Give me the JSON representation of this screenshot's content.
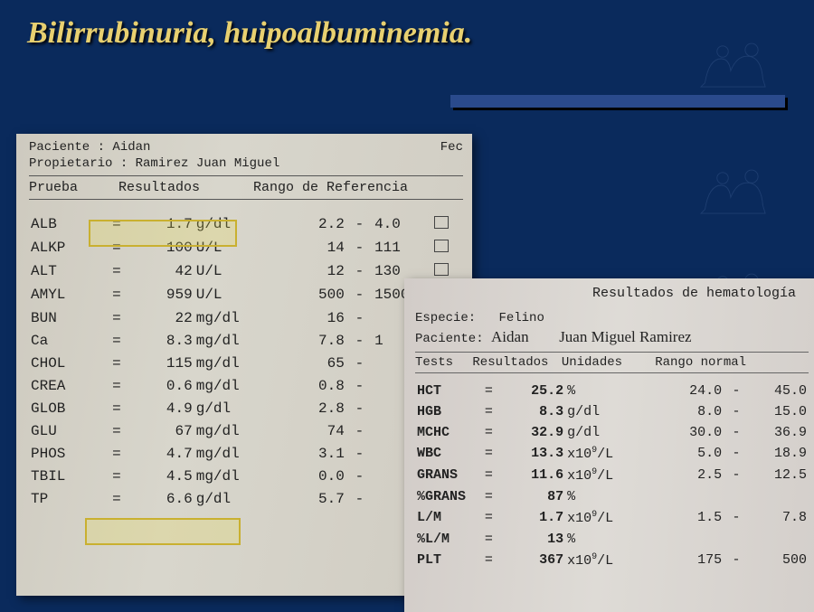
{
  "title": "Bilirrubinuria, huipoalbuminemia.",
  "panel1": {
    "patient_label": "Paciente :",
    "patient": "Aidan",
    "owner_label": "Propietario :",
    "owner": "Ramirez Juan Miguel",
    "date_label": "Fec",
    "col_test": "Prueba",
    "col_result": "Resultados",
    "col_range": "Rango de Referencia",
    "rows": [
      {
        "t": "ALB",
        "v": "1.7",
        "u": "g/dl",
        "lo": "2.2",
        "hi": "4.0",
        "box": true,
        "hl": true
      },
      {
        "t": "ALKP",
        "v": "100",
        "u": "U/L",
        "lo": "14",
        "hi": "111",
        "box": true
      },
      {
        "t": "ALT",
        "v": "42",
        "u": "U/L",
        "lo": "12",
        "hi": "130",
        "box": true
      },
      {
        "t": "AMYL",
        "v": "959",
        "u": "U/L",
        "lo": "500",
        "hi": "1500",
        "box": true
      },
      {
        "t": "BUN",
        "v": "22",
        "u": "mg/dl",
        "lo": "16",
        "hi": ""
      },
      {
        "t": "Ca",
        "v": "8.3",
        "u": "mg/dl",
        "lo": "7.8",
        "hi": "1"
      },
      {
        "t": "CHOL",
        "v": "115",
        "u": "mg/dl",
        "lo": "65",
        "hi": ""
      },
      {
        "t": "CREA",
        "v": "0.6",
        "u": "mg/dl",
        "lo": "0.8",
        "hi": ""
      },
      {
        "t": "GLOB",
        "v": "4.9",
        "u": "g/dl",
        "lo": "2.8",
        "hi": ""
      },
      {
        "t": "GLU",
        "v": "67",
        "u": "mg/dl",
        "lo": "74",
        "hi": ""
      },
      {
        "t": "PHOS",
        "v": "4.7",
        "u": "mg/dl",
        "lo": "3.1",
        "hi": ""
      },
      {
        "t": "TBIL",
        "v": "4.5",
        "u": "mg/dl",
        "lo": "0.0",
        "hi": "",
        "hl": true
      },
      {
        "t": "TP",
        "v": "6.6",
        "u": "g/dl",
        "lo": "5.7",
        "hi": ""
      }
    ]
  },
  "panel2": {
    "heading": "Resultados de hematología",
    "species_label": "Especie:",
    "species": "Felino",
    "patient_label": "Paciente:",
    "patient_hand": "Aidan",
    "owner_hand": "Juan Miguel Ramirez",
    "col_test": "Tests",
    "col_result": "Resultados",
    "col_unit": "Unidades",
    "col_range": "Rango normal",
    "rows": [
      {
        "t": "HCT",
        "v": "25.2",
        "u": "%",
        "lo": "24.0",
        "hi": "45.0"
      },
      {
        "t": "HGB",
        "v": "8.3",
        "u": "g/dl",
        "lo": "8.0",
        "hi": "15.0"
      },
      {
        "t": "MCHC",
        "v": "32.9",
        "u": "g/dl",
        "lo": "30.0",
        "hi": "36.9"
      },
      {
        "t": "WBC",
        "v": "13.3",
        "u": "x10⁹/L",
        "lo": "5.0",
        "hi": "18.9"
      },
      {
        "t": "GRANS",
        "v": "11.6",
        "u": "x10⁹/L",
        "lo": "2.5",
        "hi": "12.5"
      },
      {
        "t": "%GRANS",
        "v": "87",
        "u": "%",
        "lo": "",
        "hi": ""
      },
      {
        "t": "L/M",
        "v": "1.7",
        "u": "x10⁹/L",
        "lo": "1.5",
        "hi": "7.8"
      },
      {
        "t": "%L/M",
        "v": "13",
        "u": "%",
        "lo": "",
        "hi": ""
      },
      {
        "t": "PLT",
        "v": "367",
        "u": "x10⁹/L",
        "lo": "175",
        "hi": "500"
      }
    ]
  }
}
